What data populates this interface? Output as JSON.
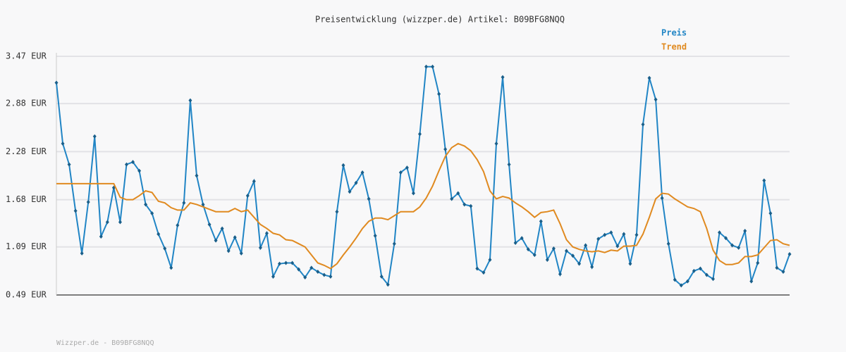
{
  "chart_data": {
    "type": "line",
    "title": "Preisentwicklung (wizzper.de) Artikel: B09BFG8NQQ",
    "footer": "Wizzper.de - B09BFG8NQQ",
    "ylim": [
      0.49,
      3.47
    ],
    "yticks": [
      {
        "value": 0.49,
        "label": "0.49 EUR"
      },
      {
        "value": 1.09,
        "label": "1.09 EUR"
      },
      {
        "value": 1.68,
        "label": "1.68 EUR"
      },
      {
        "value": 2.28,
        "label": "2.28 EUR"
      },
      {
        "value": 2.88,
        "label": "2.88 EUR"
      },
      {
        "value": 3.47,
        "label": "3.47 EUR"
      }
    ],
    "grid": true,
    "legend": "top-right",
    "series": [
      {
        "name": "Preis",
        "color": "#2185c5",
        "markers": true,
        "values": [
          3.14,
          2.38,
          2.12,
          1.54,
          1.01,
          1.65,
          2.47,
          1.22,
          1.4,
          1.83,
          1.4,
          2.12,
          2.15,
          2.04,
          1.62,
          1.51,
          1.25,
          1.07,
          0.83,
          1.36,
          1.64,
          2.92,
          1.98,
          1.62,
          1.37,
          1.17,
          1.32,
          1.04,
          1.21,
          1.01,
          1.73,
          1.91,
          1.08,
          1.26,
          0.72,
          0.88,
          0.89,
          0.89,
          0.81,
          0.71,
          0.83,
          0.78,
          0.74,
          0.72,
          1.53,
          2.11,
          1.78,
          1.89,
          2.02,
          1.69,
          1.23,
          0.72,
          0.62,
          1.13,
          2.02,
          2.08,
          1.76,
          2.5,
          3.34,
          3.34,
          3.0,
          2.31,
          1.69,
          1.76,
          1.62,
          1.6,
          0.82,
          0.77,
          0.93,
          2.38,
          3.21,
          2.12,
          1.14,
          1.2,
          1.06,
          0.99,
          1.41,
          0.93,
          1.07,
          0.75,
          1.04,
          0.98,
          0.88,
          1.11,
          0.84,
          1.19,
          1.24,
          1.27,
          1.1,
          1.25,
          0.88,
          1.24,
          2.62,
          3.2,
          2.93,
          1.7,
          1.13,
          0.68,
          0.61,
          0.66,
          0.79,
          0.82,
          0.74,
          0.69,
          1.27,
          1.2,
          1.11,
          1.08,
          1.29,
          0.66,
          0.89,
          1.92,
          1.51,
          0.83,
          0.78,
          1.0
        ]
      },
      {
        "name": "Trend",
        "color": "#e08a20",
        "markers": false,
        "values": [
          1.88,
          1.88,
          1.88,
          1.88,
          1.88,
          1.88,
          1.88,
          1.88,
          1.88,
          1.88,
          1.71,
          1.68,
          1.68,
          1.73,
          1.79,
          1.77,
          1.66,
          1.64,
          1.58,
          1.55,
          1.55,
          1.64,
          1.62,
          1.59,
          1.56,
          1.53,
          1.53,
          1.53,
          1.57,
          1.53,
          1.55,
          1.46,
          1.37,
          1.32,
          1.26,
          1.24,
          1.18,
          1.17,
          1.13,
          1.09,
          0.99,
          0.89,
          0.86,
          0.82,
          0.88,
          0.99,
          1.09,
          1.2,
          1.32,
          1.41,
          1.45,
          1.45,
          1.43,
          1.48,
          1.53,
          1.53,
          1.53,
          1.59,
          1.7,
          1.85,
          2.04,
          2.22,
          2.33,
          2.38,
          2.35,
          2.29,
          2.18,
          2.03,
          1.79,
          1.69,
          1.72,
          1.7,
          1.64,
          1.59,
          1.53,
          1.46,
          1.52,
          1.53,
          1.55,
          1.38,
          1.18,
          1.09,
          1.06,
          1.04,
          1.03,
          1.04,
          1.02,
          1.05,
          1.04,
          1.1,
          1.1,
          1.11,
          1.25,
          1.46,
          1.69,
          1.76,
          1.75,
          1.69,
          1.64,
          1.59,
          1.57,
          1.53,
          1.32,
          1.05,
          0.92,
          0.87,
          0.87,
          0.89,
          0.97,
          0.97,
          0.99,
          1.08,
          1.17,
          1.18,
          1.13,
          1.11
        ]
      }
    ]
  }
}
